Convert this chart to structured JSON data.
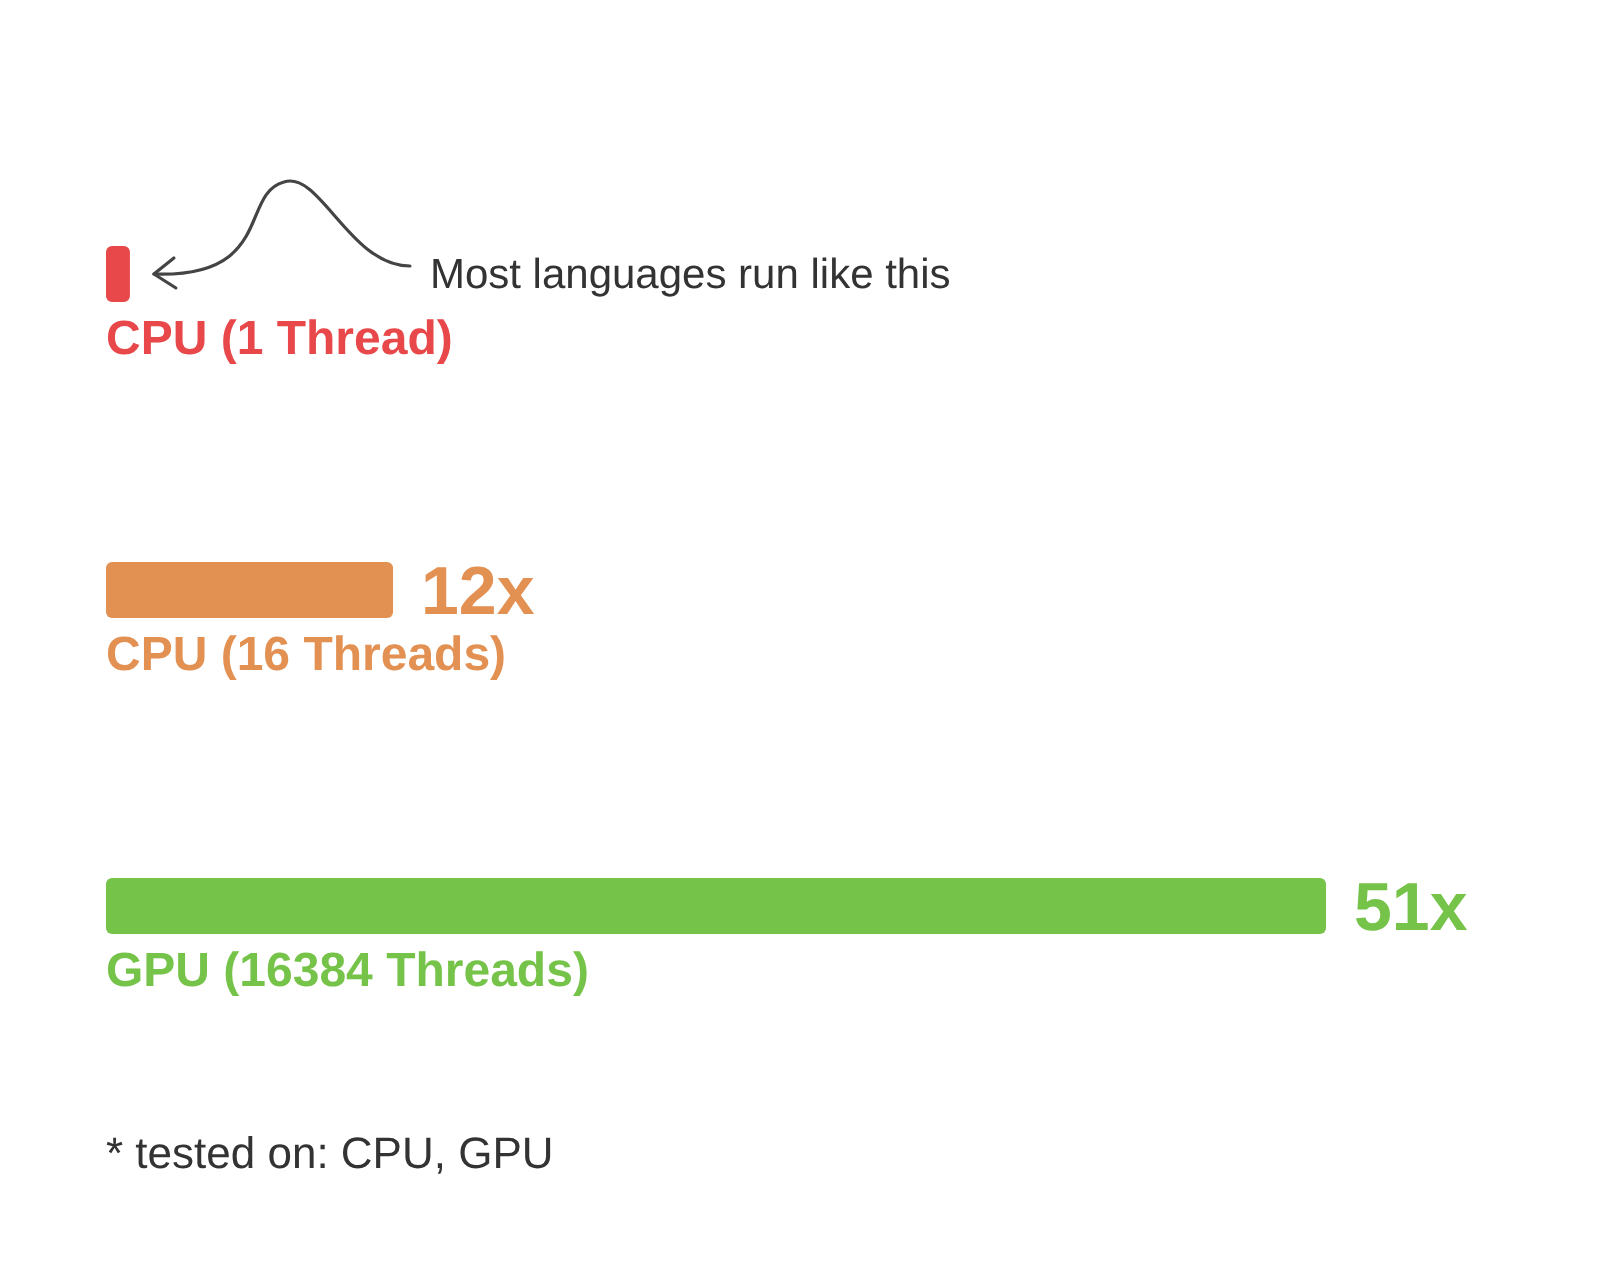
{
  "chart_data": {
    "type": "bar",
    "orientation": "horizontal",
    "categories": [
      "CPU (1 Thread)",
      "CPU (16 Threads)",
      "GPU (16384 Threads)"
    ],
    "values": [
      1,
      12,
      51
    ],
    "colors": [
      "#e8484a",
      "#e39153",
      "#76c34a"
    ],
    "value_labels": [
      null,
      "12x",
      "51x"
    ],
    "annotations": [
      "Most languages run like this",
      "* tested on: CPU, GPU"
    ]
  }
}
